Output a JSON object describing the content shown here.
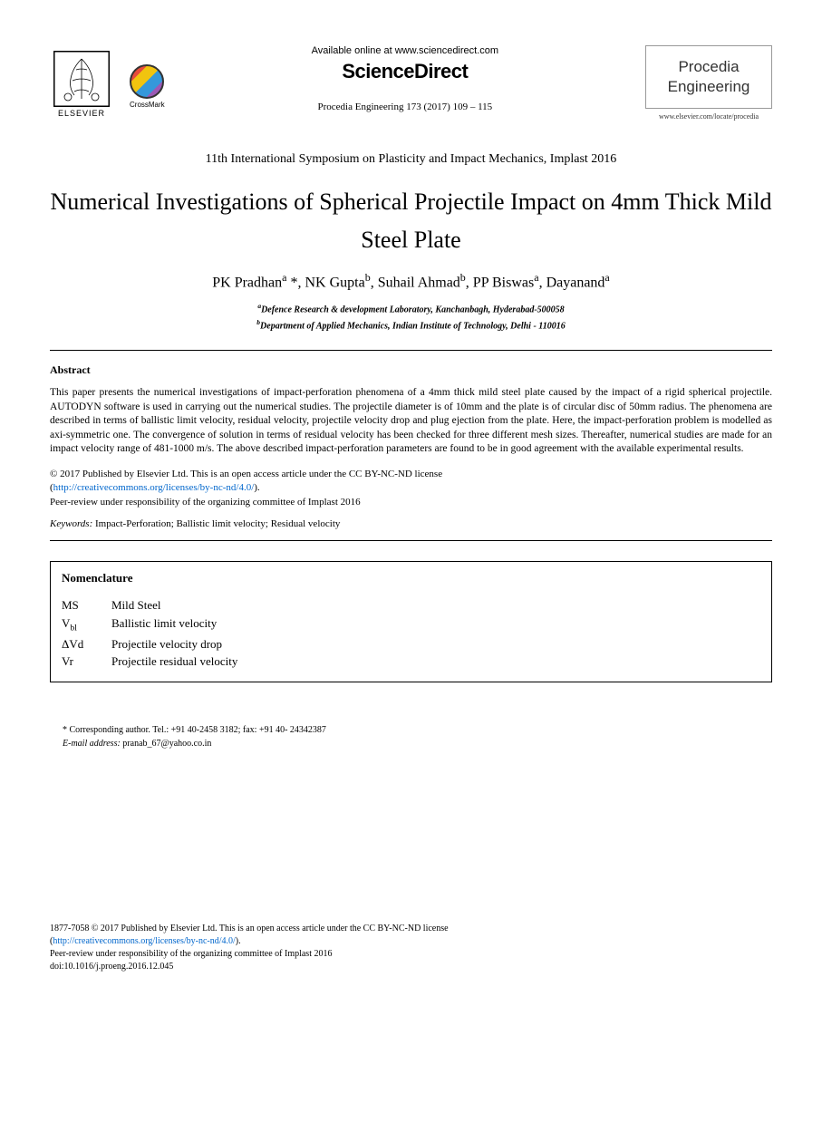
{
  "header": {
    "available_online": "Available online at www.sciencedirect.com",
    "sciencedirect": "ScienceDirect",
    "citation": "Procedia Engineering 173 (2017) 109 – 115",
    "elsevier_label": "ELSEVIER",
    "crossmark_label": "CrossMark",
    "journal_name_line1": "Procedia",
    "journal_name_line2": "Engineering",
    "journal_url": "www.elsevier.com/locate/procedia"
  },
  "conference": "11th International Symposium on Plasticity and Impact Mechanics, Implast 2016",
  "title": "Numerical Investigations of Spherical Projectile Impact on 4mm Thick Mild Steel Plate",
  "authors_html": "PK Pradhan<sup>a</sup> *, NK Gupta<sup>b</sup>, Suhail Ahmad<sup>b</sup>, PP Biswas<sup>a</sup>, Dayanand<sup>a</sup>",
  "affiliations": {
    "a": "Defence Research & development Laboratory, Kanchanbagh, Hyderabad-500058",
    "b": "Department of Applied Mechanics, Indian Institute of Technology, Delhi - 110016"
  },
  "abstract": {
    "heading": "Abstract",
    "body": "This paper presents the numerical investigations of impact-perforation phenomena of a 4mm thick mild steel plate caused by the impact of a rigid spherical projectile. AUTODYN software is used in carrying out the numerical studies. The projectile diameter is of 10mm and the plate is of circular disc of 50mm radius. The phenomena are described in terms of ballistic limit velocity, residual velocity, projectile velocity drop and plug ejection from the plate. Here, the impact-perforation problem is modelled as axi-symmetric one. The  convergence of solution in terms of residual velocity has been checked for three different mesh sizes. Thereafter, numerical studies are made for an impact velocity range of 481-1000 m/s. The above described impact-perforation parameters are found to be in good agreement with the available experimental results."
  },
  "copyright": {
    "line1": "© 2017 Published by Elsevier Ltd. This is an open access article under the CC BY-NC-ND license",
    "license_url": "http://creativecommons.org/licenses/by-nc-nd/4.0/",
    "peer_review": "Peer-review under responsibility of the organizing committee of Implast 2016"
  },
  "keywords": {
    "label": "Keywords:",
    "text": " Impact-Perforation; Ballistic limit velocity; Residual velocity"
  },
  "nomenclature": {
    "title": "Nomenclature",
    "items": [
      {
        "symbol": "MS",
        "desc": "Mild Steel"
      },
      {
        "symbol_html": "V<sub>bl</sub>",
        "desc": "Ballistic limit velocity"
      },
      {
        "symbol": "ΔVd",
        "desc": "Projectile velocity drop"
      },
      {
        "symbol": "Vr",
        "desc": "Projectile residual velocity"
      }
    ]
  },
  "corresponding": {
    "line": "* Corresponding author. Tel.: +91 40-2458 3182; fax: +91 40- 24342387",
    "email_label": "E-mail address:",
    "email": " pranab_67@yahoo.co.in"
  },
  "footer": {
    "issn_line": "1877-7058 © 2017 Published by Elsevier Ltd. This is an open access article under the CC BY-NC-ND license",
    "license_url": "http://creativecommons.org/licenses/by-nc-nd/4.0/",
    "peer_review": "Peer-review under responsibility of the organizing committee of Implast 2016",
    "doi": "doi:10.1016/j.proeng.2016.12.045"
  },
  "colors": {
    "text": "#000000",
    "link": "#0066cc",
    "background": "#ffffff",
    "border": "#000000"
  }
}
